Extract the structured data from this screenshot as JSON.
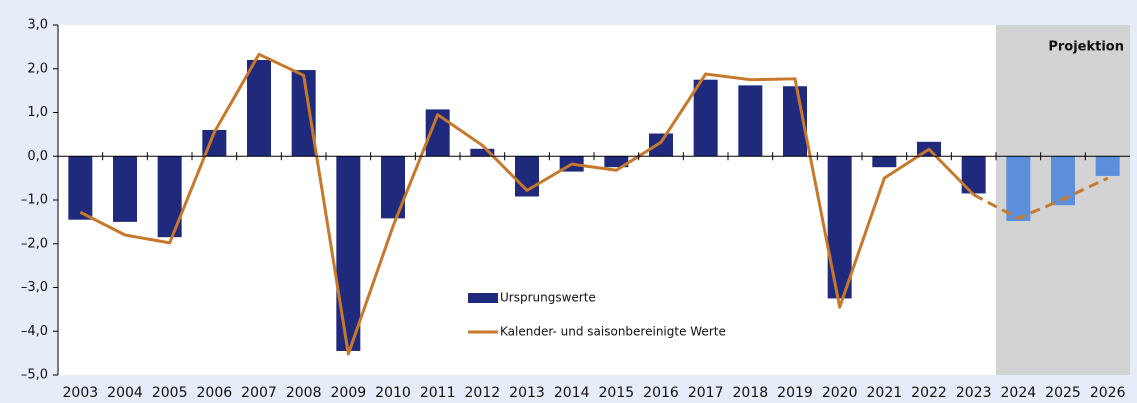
{
  "chart_data": {
    "type": "bar_line",
    "categories": [
      "2003",
      "2004",
      "2005",
      "2006",
      "2007",
      "2008",
      "2009",
      "2010",
      "2011",
      "2012",
      "2013",
      "2014",
      "2015",
      "2016",
      "2017",
      "2018",
      "2019",
      "2020",
      "2021",
      "2022",
      "2023",
      "2024",
      "2025",
      "2026"
    ],
    "series": [
      {
        "name": "Ursprungswerte",
        "type": "bar",
        "color": "#1f2a7c",
        "projection_color": "#5b8fdb",
        "values": [
          -1.45,
          -1.5,
          -1.85,
          0.6,
          2.2,
          1.97,
          -4.45,
          -1.42,
          1.07,
          0.17,
          -0.92,
          -0.35,
          -0.25,
          0.52,
          1.75,
          1.62,
          1.6,
          -3.25,
          -0.25,
          0.33,
          -0.85,
          -1.48,
          -1.12,
          -0.45
        ]
      },
      {
        "name": "Kalender- und saisonbereinigte Werte",
        "type": "line",
        "color": "#c8782a",
        "values": [
          -1.28,
          -1.8,
          -1.98,
          0.55,
          2.33,
          1.85,
          -4.52,
          -1.6,
          0.95,
          0.25,
          -0.78,
          -0.18,
          -0.32,
          0.32,
          1.88,
          1.75,
          1.77,
          -3.45,
          -0.5,
          0.16,
          -0.88,
          -1.42,
          -0.98,
          -0.5
        ]
      }
    ],
    "projection": {
      "label": "Projektion",
      "start": "2024",
      "color": "#d3d3d3"
    },
    "ylim": [
      -5,
      3
    ],
    "yticks": [
      {
        "value": -5,
        "label": "–5,0"
      },
      {
        "value": -4,
        "label": "–4,0"
      },
      {
        "value": -3,
        "label": "–3,0"
      },
      {
        "value": -2,
        "label": "–2,0"
      },
      {
        "value": -1,
        "label": "–1,0"
      },
      {
        "value": 0,
        "label": "0,0"
      },
      {
        "value": 1,
        "label": "1,0"
      },
      {
        "value": 2,
        "label": "2,0"
      },
      {
        "value": 3,
        "label": "3,0"
      }
    ],
    "legend": "center"
  }
}
